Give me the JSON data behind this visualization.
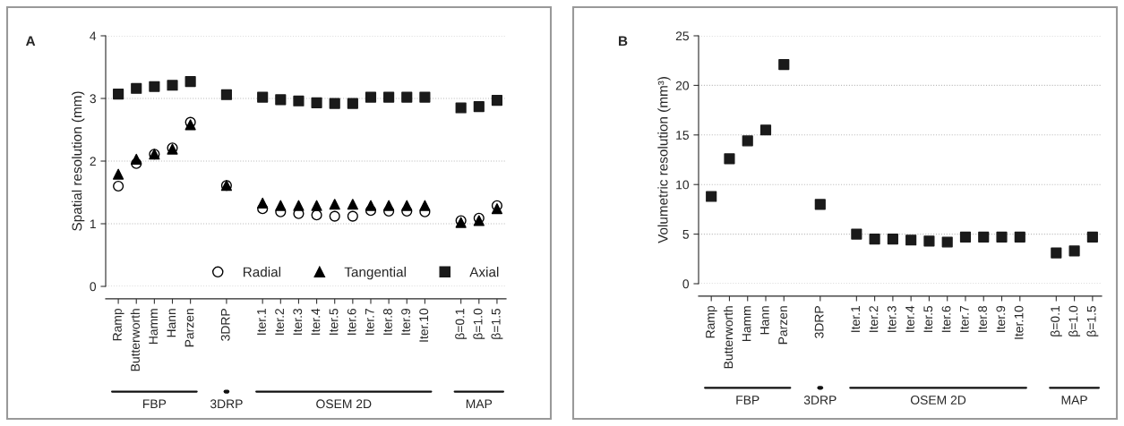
{
  "chart_data": [
    {
      "type": "scatter",
      "title": "A",
      "ylabel": "Spatial resolution (mm)",
      "categories": [
        "Ramp",
        "Butterworth",
        "Hamm",
        "Hann",
        "Parzen",
        null,
        "3DRP",
        null,
        "Iter.1",
        "Iter.2",
        "Iter.3",
        "Iter.4",
        "Iter.5",
        "Iter.6",
        "Iter.7",
        "Iter.8",
        "Iter.9",
        "Iter.10",
        null,
        "β=0.1",
        "β=1.0",
        "β=1.5"
      ],
      "series": [
        {
          "name": "Radial",
          "color": "#000000",
          "marker": "circle",
          "values": [
            1.6,
            1.96,
            2.11,
            2.21,
            2.62,
            null,
            1.61,
            null,
            1.24,
            1.19,
            1.16,
            1.14,
            1.12,
            1.12,
            1.21,
            1.2,
            1.2,
            1.19,
            null,
            1.05,
            1.09,
            1.29
          ]
        },
        {
          "name": "Tangential",
          "color": "#000000",
          "marker": "triangle",
          "values": [
            1.79,
            2.03,
            2.11,
            2.19,
            2.58,
            null,
            1.61,
            null,
            1.33,
            1.29,
            1.29,
            1.29,
            1.31,
            1.31,
            1.29,
            1.29,
            1.29,
            1.29,
            null,
            1.02,
            1.05,
            1.24
          ]
        },
        {
          "name": "Axial",
          "color": "#1a1a1a",
          "marker": "square",
          "values": [
            3.07,
            3.16,
            3.19,
            3.21,
            3.27,
            null,
            3.06,
            null,
            3.02,
            2.98,
            2.96,
            2.93,
            2.92,
            2.92,
            3.02,
            3.02,
            3.02,
            3.02,
            null,
            2.85,
            2.87,
            2.97
          ]
        }
      ],
      "ylim": [
        0,
        4
      ],
      "yticks": [
        0,
        1,
        2,
        3,
        4
      ],
      "grid": "y",
      "legend": "bottom right",
      "annotations": [
        "FBP",
        "3DRP",
        "OSEM 2D",
        "MAP"
      ]
    },
    {
      "type": "scatter",
      "title": "B",
      "ylabel": "Volumetric resolution (mm³)",
      "categories": [
        "Ramp",
        "Butterworth",
        "Hamm",
        "Hann",
        "Parzen",
        null,
        "3DRP",
        null,
        "Iter.1",
        "Iter.2",
        "Iter.3",
        "Iter.4",
        "Iter.5",
        "Iter.6",
        "Iter.7",
        "Iter.8",
        "Iter.9",
        "Iter.10",
        null,
        "β=0.1",
        "β=1.0",
        "β=1.5"
      ],
      "series": [
        {
          "color": "#1a1a1a",
          "marker": "square",
          "values": [
            8.8,
            12.6,
            14.4,
            15.5,
            22.1,
            null,
            8.0,
            null,
            5.0,
            4.5,
            4.5,
            4.4,
            4.3,
            4.2,
            4.7,
            4.7,
            4.7,
            4.7,
            null,
            3.1,
            3.3,
            4.7
          ]
        }
      ],
      "ylim": [
        0,
        25
      ],
      "yticks": [
        0,
        5,
        10,
        15,
        20,
        25
      ],
      "grid": "y",
      "annotations": [
        "FBP",
        "3DRP",
        "OSEM 2D",
        "MAP"
      ]
    }
  ]
}
